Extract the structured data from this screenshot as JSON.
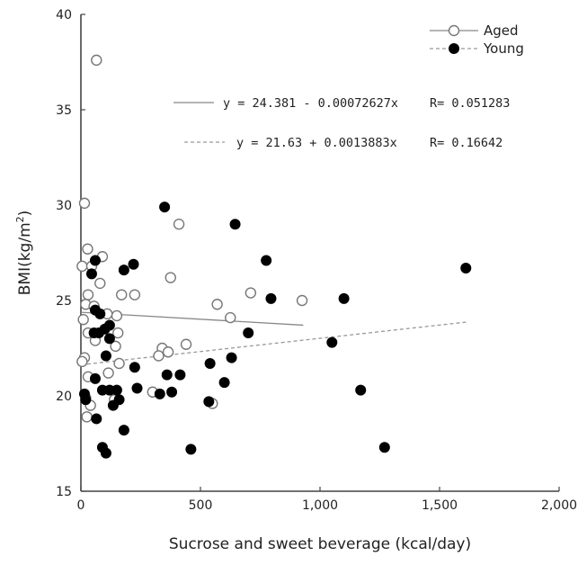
{
  "chart_data": {
    "type": "scatter",
    "title": "",
    "xlabel": "Sucrose and sweet beverage (kcal/day)",
    "ylabel": "BMI(kg/m",
    "ylabel_sup": "2",
    "ylabel_close": ")",
    "xlim": [
      0,
      2000
    ],
    "ylim": [
      15,
      40
    ],
    "xticks": [
      0,
      500,
      1000,
      1500,
      2000
    ],
    "xtick_labels": [
      "0",
      "500",
      "1,000",
      "1,500",
      "2,000"
    ],
    "yticks": [
      15,
      20,
      25,
      30,
      35,
      40
    ],
    "ytick_labels": [
      "15",
      "20",
      "25",
      "30",
      "35",
      "40"
    ],
    "grid": false,
    "legend_position": "top-right",
    "series": [
      {
        "name": "Aged",
        "marker": "open-circle",
        "line_style": "solid",
        "color": "#888888",
        "points": [
          [
            65,
            37.6
          ],
          [
            15,
            30.1
          ],
          [
            28,
            27.7
          ],
          [
            90,
            27.3
          ],
          [
            5,
            26.8
          ],
          [
            45,
            26.8
          ],
          [
            80,
            25.9
          ],
          [
            30,
            25.3
          ],
          [
            170,
            25.3
          ],
          [
            225,
            25.3
          ],
          [
            20,
            24.8
          ],
          [
            55,
            24.7
          ],
          [
            150,
            24.2
          ],
          [
            10,
            24.0
          ],
          [
            110,
            24.3
          ],
          [
            30,
            23.3
          ],
          [
            155,
            23.3
          ],
          [
            60,
            22.9
          ],
          [
            145,
            22.6
          ],
          [
            15,
            22.0
          ],
          [
            5,
            21.8
          ],
          [
            160,
            21.7
          ],
          [
            115,
            21.2
          ],
          [
            30,
            21.0
          ],
          [
            20,
            19.9
          ],
          [
            140,
            19.8
          ],
          [
            40,
            19.5
          ],
          [
            25,
            18.9
          ],
          [
            410,
            29.0
          ],
          [
            375,
            26.2
          ],
          [
            710,
            25.4
          ],
          [
            925,
            25.0
          ],
          [
            570,
            24.8
          ],
          [
            625,
            24.1
          ],
          [
            440,
            22.7
          ],
          [
            340,
            22.5
          ],
          [
            365,
            22.3
          ],
          [
            325,
            22.1
          ],
          [
            300,
            20.2
          ],
          [
            550,
            19.6
          ]
        ]
      },
      {
        "name": "Young",
        "marker": "filled-circle",
        "line_style": "dashed",
        "color": "#000000",
        "points": [
          [
            350,
            29.9
          ],
          [
            645,
            29.0
          ],
          [
            775,
            27.1
          ],
          [
            1610,
            26.7
          ],
          [
            220,
            26.9
          ],
          [
            180,
            26.6
          ],
          [
            60,
            27.1
          ],
          [
            45,
            26.4
          ],
          [
            1100,
            25.1
          ],
          [
            795,
            25.1
          ],
          [
            60,
            24.5
          ],
          [
            80,
            24.3
          ],
          [
            120,
            23.7
          ],
          [
            100,
            23.5
          ],
          [
            55,
            23.3
          ],
          [
            75,
            23.3
          ],
          [
            700,
            23.3
          ],
          [
            120,
            23.0
          ],
          [
            1050,
            22.8
          ],
          [
            105,
            22.1
          ],
          [
            630,
            22.0
          ],
          [
            540,
            21.7
          ],
          [
            225,
            21.5
          ],
          [
            415,
            21.1
          ],
          [
            360,
            21.1
          ],
          [
            60,
            20.9
          ],
          [
            235,
            20.4
          ],
          [
            90,
            20.3
          ],
          [
            120,
            20.3
          ],
          [
            150,
            20.3
          ],
          [
            380,
            20.2
          ],
          [
            330,
            20.1
          ],
          [
            15,
            20.1
          ],
          [
            20,
            19.8
          ],
          [
            160,
            19.8
          ],
          [
            600,
            20.7
          ],
          [
            135,
            19.5
          ],
          [
            535,
            19.7
          ],
          [
            65,
            18.8
          ],
          [
            180,
            18.2
          ],
          [
            90,
            17.3
          ],
          [
            105,
            17.0
          ],
          [
            460,
            17.2
          ],
          [
            1270,
            17.3
          ],
          [
            1170,
            20.3
          ]
        ]
      }
    ],
    "regressions": [
      {
        "series": "Aged",
        "equation": "y = 24.381 - 0.00072627x",
        "r_label": "R= 0.051283",
        "intercept": 24.381,
        "slope": -0.00072627,
        "x_range": [
          0,
          930
        ]
      },
      {
        "series": "Young",
        "equation": "y = 21.63 + 0.0013883x",
        "r_label": "R= 0.16642",
        "intercept": 21.63,
        "slope": 0.0013883,
        "x_range": [
          0,
          1610
        ]
      }
    ]
  }
}
